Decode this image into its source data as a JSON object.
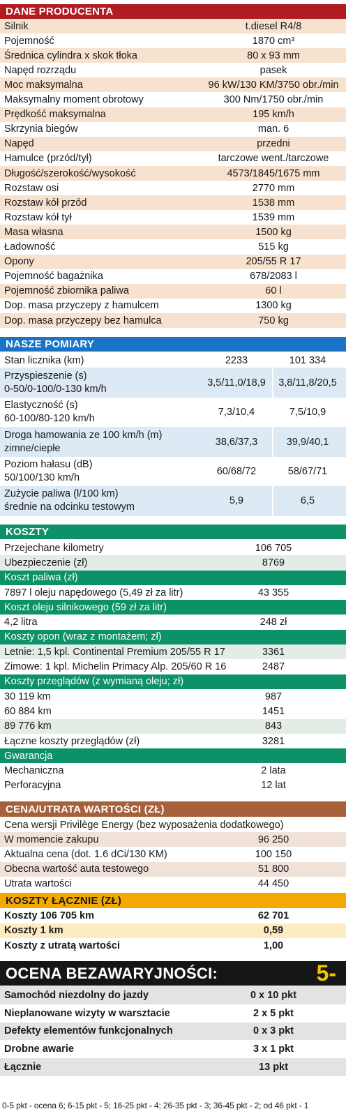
{
  "dane": {
    "title": "DANE PRODUCENTA",
    "rows": [
      {
        "label": "Silnik",
        "value": "t.diesel R4/8"
      },
      {
        "label": "Pojemność",
        "value": "1870 cm³"
      },
      {
        "label": "Średnica cylindra x skok tłoka",
        "value": "80 x 93 mm"
      },
      {
        "label": "Napęd rozrządu",
        "value": "pasek"
      },
      {
        "label": "Moc maksymalna",
        "value": "96 kW/130 KM/3750 obr./min"
      },
      {
        "label": "Maksymalny moment obrotowy",
        "value": "300 Nm/1750 obr./min"
      },
      {
        "label": "Prędkość maksymalna",
        "value": "195 km/h"
      },
      {
        "label": "Skrzynia biegów",
        "value": "man. 6"
      },
      {
        "label": "Napęd",
        "value": "przedni"
      },
      {
        "label": "Hamulce (przód/tył)",
        "value": "tarczowe went./tarczowe"
      },
      {
        "label": "Długość/szerokość/wysokość",
        "value": "4573/1845/1675 mm"
      },
      {
        "label": "Rozstaw osi",
        "value": "2770 mm"
      },
      {
        "label": "Rozstaw kół przód",
        "value": "1538 mm"
      },
      {
        "label": "Rozstaw kół tył",
        "value": "1539 mm"
      },
      {
        "label": "Masa własna",
        "value": "1500 kg"
      },
      {
        "label": "Ładowność",
        "value": "515 kg"
      },
      {
        "label": "Opony",
        "value": "205/55 R 17"
      },
      {
        "label": "Pojemność bagażnika",
        "value": "678/2083 l"
      },
      {
        "label": "Pojemność zbiornika paliwa",
        "value": "60 l"
      },
      {
        "label": "Dop. masa przyczepy z hamulcem",
        "value": "1300 kg"
      },
      {
        "label": "Dop. masa przyczepy bez hamulca",
        "value": "750 kg"
      }
    ]
  },
  "pomiary": {
    "title": "NASZE POMIARY",
    "rows": [
      {
        "label1": "Stan licznika (km)",
        "label2": "",
        "v1": "2233",
        "v2": "101 334"
      },
      {
        "label1": "Przyspieszenie (s)",
        "label2": "0-50/0-100/0-130 km/h",
        "v1": "3,5/11,0/18,9",
        "v2": "3,8/11,8/20,5"
      },
      {
        "label1": "Elastyczność (s)",
        "label2": "60-100/80-120 km/h",
        "v1": "7,3/10,4",
        "v2": "7,5/10,9"
      },
      {
        "label1": "Droga hamowania ze 100 km/h (m)",
        "label2": "zimne/ciepłe",
        "v1": "38,6/37,3",
        "v2": "39,9/40,1"
      },
      {
        "label1": "Poziom hałasu (dB)",
        "label2": "50/100/130 km/h",
        "v1": "60/68/72",
        "v2": "58/67/71"
      },
      {
        "label1": "Zużycie paliwa (l/100 km)",
        "label2": "średnie na odcinku testowym",
        "v1": "5,9",
        "v2": "6,5"
      }
    ]
  },
  "koszty": {
    "title": "KOSZTY",
    "rows": [
      {
        "label": "Przejechane kilometry",
        "value": "106 705"
      },
      {
        "label": "Ubezpieczenie (zł)",
        "value": "8769"
      },
      {
        "sub": "Koszt paliwa (zł)"
      },
      {
        "label": "7897 l oleju napędowego (5,49 zł za litr)",
        "value": "43 355"
      },
      {
        "sub": "Koszt oleju silnikowego (59 zł za litr)"
      },
      {
        "label": "4,2 litra",
        "value": "248 zł"
      },
      {
        "sub": "Koszty opon (wraz z montażem; zł)"
      },
      {
        "label": "Letnie: 1,5 kpl. Continental Premium 205/55 R 17",
        "value": "3361"
      },
      {
        "label": "Zimowe: 1 kpl. Michelin Primacy Alp. 205/60 R 16",
        "value": "2487"
      },
      {
        "sub": "Koszty przeglądów (z wymianą oleju; zł)"
      },
      {
        "label": "30 119 km",
        "value": "987"
      },
      {
        "label": "60 884 km",
        "value": "1451"
      },
      {
        "label": "89 776 km",
        "value": "843"
      },
      {
        "label": "Łączne koszty przeglądów (zł)",
        "value": "3281"
      },
      {
        "sub": "Gwarancja"
      },
      {
        "label": "Mechaniczna",
        "value": "2 lata"
      },
      {
        "label": "Perforacyjna",
        "value": "12 lat"
      }
    ]
  },
  "cena": {
    "title": "CENA/UTRATA WARTOŚCI (ZŁ)",
    "rows": [
      {
        "label": "Cena wersji Privilège Energy (bez wyposażenia dodatkowego)",
        "value": ""
      },
      {
        "label": "W momencie zakupu",
        "value": "96 250"
      },
      {
        "label": "Aktualna cena (dot. 1.6 dCi/130 KM)",
        "value": "100 150"
      },
      {
        "label": "Obecna wartość auta testowego",
        "value": "51 800"
      },
      {
        "label": "Utrata wartości",
        "value": "44 450"
      }
    ]
  },
  "laczne": {
    "title": "KOSZTY ŁĄCZNIE (ZŁ)",
    "rows": [
      {
        "label": "Koszty 106 705 km",
        "value": "62 701"
      },
      {
        "label": "Koszty 1 km",
        "value": "0,59"
      },
      {
        "label": "Koszty z utratą wartości",
        "value": "1,00"
      }
    ]
  },
  "ocena": {
    "title": "OCENA BEZAWARYJNOŚCI:",
    "grade": "5-",
    "rows": [
      {
        "label": "Samochód niezdolny do jazdy",
        "value": "0 x 10 pkt"
      },
      {
        "label": "Nieplanowane wizyty w warsztacie",
        "value": "2 x 5 pkt"
      },
      {
        "label": "Defekty elementów funkcjonalnych",
        "value": "0 x 3 pkt"
      },
      {
        "label": "Drobne awarie",
        "value": "3 x 1 pkt"
      },
      {
        "label": "Łącznie",
        "value": "13 pkt"
      }
    ],
    "footnote": "0-5 pkt - ocena 6; 6-15 pkt - 5; 16-25 pkt - 4; 26-35 pkt - 3; 36-45 pkt - 2; od 46 pkt - 1"
  },
  "colors": {
    "red": "#b01c22",
    "blue": "#1a73c4",
    "green": "#0d9168",
    "brown": "#a6603a",
    "orange": "#f5a800",
    "black": "#161616",
    "yellow": "#f4c400",
    "shade_dane": "#f7e1cf",
    "shade_pomiary": "#dde9f4",
    "shade_koszty": "#e3ede6",
    "shade_cena": "#f0e2d8",
    "shade_laczne": "#fdecc2",
    "shade_ocena": "#e3e3e3"
  }
}
